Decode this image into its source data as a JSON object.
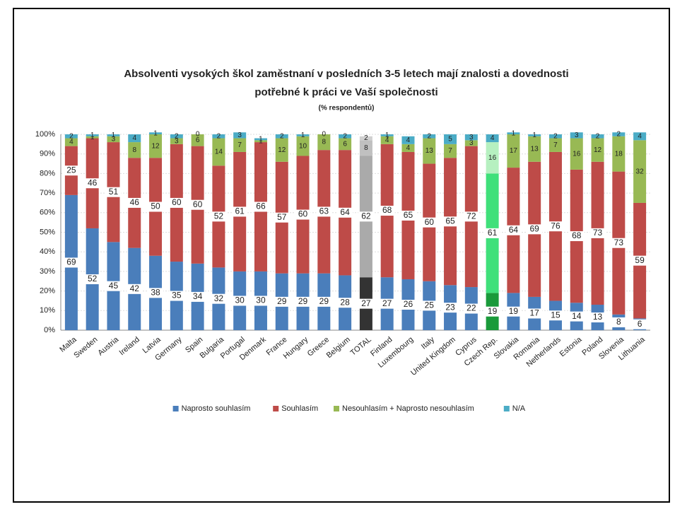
{
  "chart_data": {
    "type": "stacked_bar",
    "title": "Absolventi vysokých škol zaměstnaní v posledních 3-5 letech mají znalosti a dovednosti",
    "title_line2": "potřebné k práci ve Vaší společnosti",
    "subtitle": "(% respondentů)",
    "categories": [
      "Malta",
      "Sweden",
      "Austria",
      "Ireland",
      "Latvia",
      "Germany",
      "Spain",
      "Bulgaria",
      "Portugal",
      "Denmark",
      "France",
      "Hungary",
      "Greece",
      "Belgium",
      "TOTAL",
      "Finland",
      "Luxembourg",
      "Italy",
      "United Kingdom",
      "Cyprus",
      "Czech Rep.",
      "Slovakia",
      "Romania",
      "Netherlands",
      "Estonia",
      "Poland",
      "Slovenia",
      "Lithuania"
    ],
    "series": [
      {
        "name": "Naprosto souhlasím",
        "color": "#4a7ebb",
        "values": [
          69,
          52,
          45,
          42,
          38,
          35,
          34,
          32,
          30,
          30,
          29,
          29,
          29,
          28,
          27,
          27,
          26,
          25,
          23,
          22,
          19,
          19,
          17,
          15,
          14,
          13,
          8,
          6
        ]
      },
      {
        "name": "Souhlasím",
        "color": "#be4b48",
        "values": [
          25,
          46,
          51,
          46,
          50,
          60,
          60,
          52,
          61,
          66,
          57,
          60,
          63,
          64,
          62,
          68,
          65,
          60,
          65,
          72,
          61,
          64,
          69,
          76,
          68,
          73,
          73,
          59
        ]
      },
      {
        "name": "Nesouhlasím + Naprosto nesouhlasím",
        "color": "#98b954",
        "values": [
          4,
          1,
          3,
          8,
          12,
          3,
          6,
          14,
          7,
          1,
          12,
          10,
          8,
          6,
          8,
          4,
          4,
          13,
          7,
          3,
          16,
          17,
          13,
          7,
          16,
          12,
          18,
          32
        ]
      },
      {
        "name": "N/A",
        "color": "#4bacc6",
        "values": [
          2,
          1,
          1,
          4,
          1,
          2,
          0,
          2,
          3,
          1,
          2,
          1,
          0,
          2,
          2,
          1,
          4,
          2,
          5,
          3,
          4,
          1,
          1,
          2,
          3,
          2,
          2,
          4
        ]
      }
    ],
    "highlight": {
      "TOTAL": [
        "#333333",
        "#aaaaaa",
        "#c0c0c0",
        "#d0d0d0"
      ],
      "Czech Rep.": [
        "#1a9a3a",
        "#3fe07a",
        "#b6f0c0",
        "#4bacc6"
      ]
    },
    "ylim": [
      0,
      100
    ],
    "yticks": [
      {
        "value": 0,
        "label": "0%"
      },
      {
        "value": 10,
        "label": "10%"
      },
      {
        "value": 20,
        "label": "20%"
      },
      {
        "value": 30,
        "label": "30%"
      },
      {
        "value": 40,
        "label": "40%"
      },
      {
        "value": 50,
        "label": "50%"
      },
      {
        "value": 60,
        "label": "60%"
      },
      {
        "value": 70,
        "label": "70%"
      },
      {
        "value": 80,
        "label": "80%"
      },
      {
        "value": 90,
        "label": "90%"
      },
      {
        "value": 100,
        "label": "100%"
      }
    ],
    "grid": true,
    "legend": "bottom"
  }
}
